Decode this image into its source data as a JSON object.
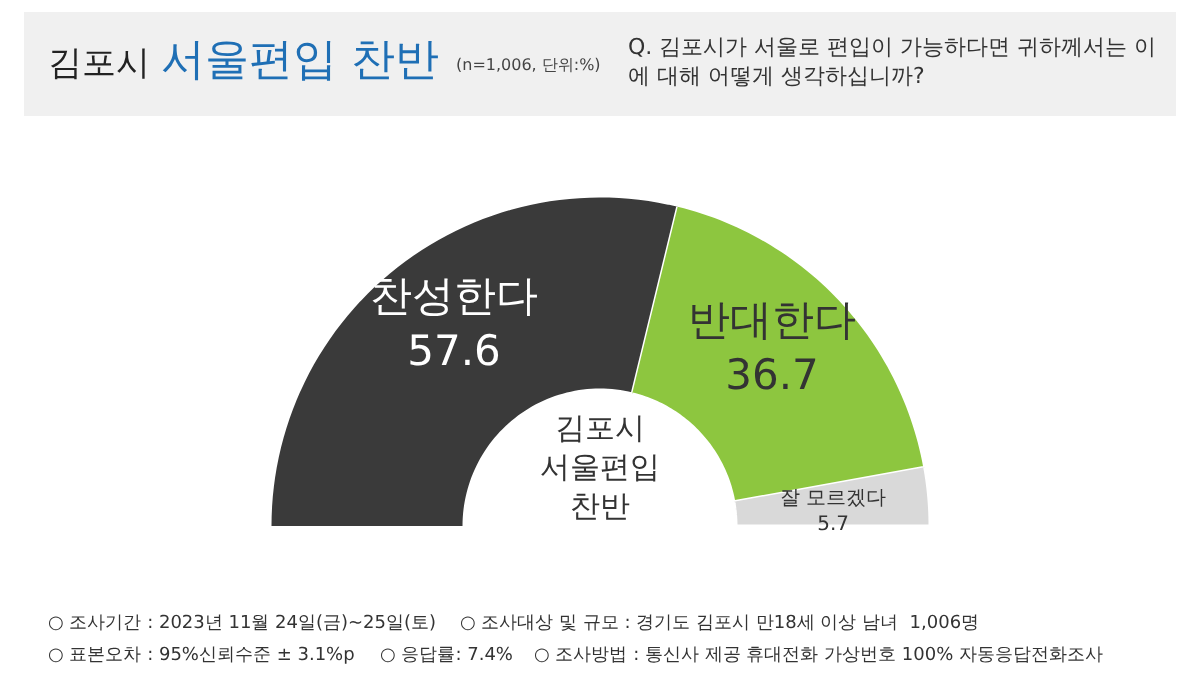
{
  "chart_data": {
    "type": "donut",
    "title": "김포시 서울편입 찬반",
    "subtitle": "(n=1,006, 단위:%)",
    "categories": [
      "찬성한다",
      "반대한다",
      "잘 모르겠다"
    ],
    "values": [
      57.6,
      36.7,
      5.7
    ],
    "colors": [
      "#3a3a3a",
      "#8dc63f",
      "#d9d9d9"
    ],
    "data_labels": true,
    "legend": false,
    "annotations": [
      "Q. 김포시가 서울로 편입이 가능하다면 귀하께서는 이\n에 대해 어떻게 생각하십니까?",
      "김포시\n서울편입\n찬반",
      "○ 조사기간 : 2023년 11월 24일(금)~25일(토)",
      "○ 조사대상 및 규모 : 경기도 김포시 만18세 이상 남녀  1,006명",
      "○ 표본오차 : 95%신뢰수준 ± 3.1%p",
      "○ 응답률: 7.4%",
      "○ 조사방법 : 통신사 제공 휴대전화 가상번호 100% 자동응답전화조사"
    ]
  }
}
